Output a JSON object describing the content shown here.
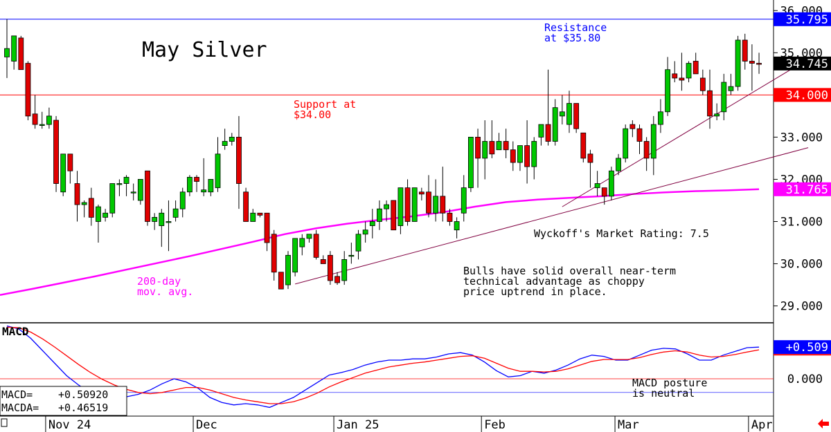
{
  "chart_data": [
    {
      "type": "candlestick",
      "title": "May Silver",
      "y_axis": {
        "ylim": [
          28.6,
          36.25
        ],
        "ticks": [
          "36.000",
          "35.000",
          "34.000",
          "33.000",
          "32.000",
          "31.000",
          "30.000",
          "29.000"
        ],
        "tick_values": [
          36,
          35,
          34,
          33,
          32,
          31,
          30,
          29
        ]
      },
      "x_axis": {
        "labels": [
          "Nov 24",
          "Dec",
          "Jan 25",
          "Feb",
          "Mar",
          "Apr"
        ],
        "label_bar": [
          6,
          27,
          47,
          68,
          87,
          106
        ]
      },
      "candles": [
        {
          "o": 34.9,
          "h": 35.8,
          "l": 34.4,
          "c": 35.1
        },
        {
          "o": 34.8,
          "h": 35.4,
          "l": 34.6,
          "c": 35.4
        },
        {
          "o": 35.35,
          "h": 35.4,
          "l": 34.6,
          "c": 34.6
        },
        {
          "o": 34.75,
          "h": 34.8,
          "l": 33.4,
          "c": 33.5
        },
        {
          "o": 33.55,
          "h": 34.0,
          "l": 33.2,
          "c": 33.3
        },
        {
          "o": 33.3,
          "h": 33.6,
          "l": 33.2,
          "c": 33.3
        },
        {
          "o": 33.3,
          "h": 33.7,
          "l": 33.2,
          "c": 33.5
        },
        {
          "o": 33.4,
          "h": 33.5,
          "l": 31.7,
          "c": 31.9
        },
        {
          "o": 31.7,
          "h": 32.6,
          "l": 31.6,
          "c": 32.6
        },
        {
          "o": 32.6,
          "h": 32.6,
          "l": 31.9,
          "c": 32.2
        },
        {
          "o": 31.9,
          "h": 32.2,
          "l": 31.0,
          "c": 31.4
        },
        {
          "o": 31.4,
          "h": 31.5,
          "l": 31.1,
          "c": 31.45
        },
        {
          "o": 31.55,
          "h": 31.8,
          "l": 30.9,
          "c": 31.1
        },
        {
          "o": 31.0,
          "h": 31.4,
          "l": 30.5,
          "c": 31.35
        },
        {
          "o": 31.1,
          "h": 31.3,
          "l": 31.0,
          "c": 31.2
        },
        {
          "o": 31.2,
          "h": 31.9,
          "l": 31.1,
          "c": 31.9
        },
        {
          "o": 31.9,
          "h": 32.0,
          "l": 31.6,
          "c": 31.9
        },
        {
          "o": 31.9,
          "h": 32.1,
          "l": 31.6,
          "c": 32.05
        },
        {
          "o": 31.7,
          "h": 31.9,
          "l": 31.5,
          "c": 31.7
        },
        {
          "o": 31.5,
          "h": 32.0,
          "l": 31.4,
          "c": 32.0
        },
        {
          "o": 32.2,
          "h": 32.2,
          "l": 30.9,
          "c": 31.0
        },
        {
          "o": 31.0,
          "h": 31.2,
          "l": 30.8,
          "c": 31.1
        },
        {
          "o": 30.9,
          "h": 31.3,
          "l": 30.4,
          "c": 31.2
        },
        {
          "o": 31.0,
          "h": 31.5,
          "l": 30.3,
          "c": 31.0
        },
        {
          "o": 31.1,
          "h": 31.5,
          "l": 31.0,
          "c": 31.3
        },
        {
          "o": 31.3,
          "h": 31.8,
          "l": 31.1,
          "c": 31.7
        },
        {
          "o": 31.7,
          "h": 32.1,
          "l": 31.6,
          "c": 32.05
        },
        {
          "o": 32.05,
          "h": 32.1,
          "l": 31.7,
          "c": 31.95
        },
        {
          "o": 31.7,
          "h": 32.5,
          "l": 31.6,
          "c": 31.75
        },
        {
          "o": 31.7,
          "h": 32.0,
          "l": 31.6,
          "c": 32.0
        },
        {
          "o": 31.8,
          "h": 33.0,
          "l": 31.7,
          "c": 32.6
        },
        {
          "o": 32.8,
          "h": 33.2,
          "l": 32.7,
          "c": 32.9
        },
        {
          "o": 32.9,
          "h": 33.1,
          "l": 32.8,
          "c": 33.0
        },
        {
          "o": 33.0,
          "h": 33.5,
          "l": 31.3,
          "c": 31.9
        },
        {
          "o": 31.7,
          "h": 31.8,
          "l": 31.0,
          "c": 31.0
        },
        {
          "o": 31.0,
          "h": 31.3,
          "l": 31.0,
          "c": 31.2
        },
        {
          "o": 31.2,
          "h": 31.2,
          "l": 31.1,
          "c": 31.15
        },
        {
          "o": 31.2,
          "h": 31.2,
          "l": 30.3,
          "c": 30.5
        },
        {
          "o": 30.7,
          "h": 30.8,
          "l": 29.6,
          "c": 29.8
        },
        {
          "o": 29.8,
          "h": 29.8,
          "l": 29.4,
          "c": 29.4
        },
        {
          "o": 29.5,
          "h": 30.3,
          "l": 29.4,
          "c": 30.2
        },
        {
          "o": 29.8,
          "h": 30.6,
          "l": 29.7,
          "c": 30.6
        },
        {
          "o": 30.4,
          "h": 30.7,
          "l": 30.2,
          "c": 30.6
        },
        {
          "o": 30.6,
          "h": 30.7,
          "l": 30.5,
          "c": 30.7
        },
        {
          "o": 30.7,
          "h": 30.8,
          "l": 30.1,
          "c": 30.15
        },
        {
          "o": 30.1,
          "h": 30.2,
          "l": 30.0,
          "c": 30.0
        },
        {
          "o": 30.2,
          "h": 30.3,
          "l": 29.5,
          "c": 29.6
        },
        {
          "o": 29.7,
          "h": 29.8,
          "l": 29.5,
          "c": 29.55
        },
        {
          "o": 29.6,
          "h": 30.3,
          "l": 29.5,
          "c": 30.1
        },
        {
          "o": 30.2,
          "h": 30.5,
          "l": 30.0,
          "c": 30.2
        },
        {
          "o": 30.3,
          "h": 30.8,
          "l": 30.1,
          "c": 30.7
        },
        {
          "o": 30.7,
          "h": 31.0,
          "l": 30.5,
          "c": 30.8
        },
        {
          "o": 30.9,
          "h": 31.3,
          "l": 30.6,
          "c": 31.0
        },
        {
          "o": 31.0,
          "h": 31.5,
          "l": 30.8,
          "c": 31.3
        },
        {
          "o": 31.3,
          "h": 31.5,
          "l": 31.0,
          "c": 31.4
        },
        {
          "o": 31.5,
          "h": 31.5,
          "l": 30.8,
          "c": 30.8
        },
        {
          "o": 30.9,
          "h": 31.8,
          "l": 30.7,
          "c": 31.8
        },
        {
          "o": 31.8,
          "h": 32.0,
          "l": 30.9,
          "c": 31.0
        },
        {
          "o": 31.0,
          "h": 31.8,
          "l": 31.0,
          "c": 31.8
        },
        {
          "o": 31.7,
          "h": 31.8,
          "l": 31.5,
          "c": 31.65
        },
        {
          "o": 31.7,
          "h": 32.1,
          "l": 31.1,
          "c": 31.2
        },
        {
          "o": 31.2,
          "h": 32.0,
          "l": 31.0,
          "c": 31.6
        },
        {
          "o": 31.6,
          "h": 32.3,
          "l": 31.0,
          "c": 31.2
        },
        {
          "o": 31.2,
          "h": 31.3,
          "l": 30.9,
          "c": 31.0
        },
        {
          "o": 30.8,
          "h": 31.1,
          "l": 30.6,
          "c": 31.0
        },
        {
          "o": 31.2,
          "h": 32.1,
          "l": 31.0,
          "c": 31.8
        },
        {
          "o": 31.8,
          "h": 33.0,
          "l": 31.7,
          "c": 33.0
        },
        {
          "o": 33.0,
          "h": 33.2,
          "l": 31.8,
          "c": 32.5
        },
        {
          "o": 32.5,
          "h": 33.4,
          "l": 32.0,
          "c": 32.9
        },
        {
          "o": 32.9,
          "h": 33.4,
          "l": 32.5,
          "c": 32.6
        },
        {
          "o": 32.7,
          "h": 33.1,
          "l": 32.7,
          "c": 32.9
        },
        {
          "o": 32.9,
          "h": 33.2,
          "l": 32.5,
          "c": 32.7
        },
        {
          "o": 32.7,
          "h": 32.9,
          "l": 32.2,
          "c": 32.4
        },
        {
          "o": 32.4,
          "h": 32.8,
          "l": 32.2,
          "c": 32.8
        },
        {
          "o": 32.8,
          "h": 33.4,
          "l": 31.9,
          "c": 32.3
        },
        {
          "o": 32.3,
          "h": 33.0,
          "l": 32.0,
          "c": 32.9
        },
        {
          "o": 33.0,
          "h": 33.3,
          "l": 32.8,
          "c": 33.3
        },
        {
          "o": 33.3,
          "h": 34.6,
          "l": 32.8,
          "c": 32.9
        },
        {
          "o": 32.9,
          "h": 33.9,
          "l": 32.8,
          "c": 33.7
        },
        {
          "o": 33.5,
          "h": 34.0,
          "l": 33.3,
          "c": 33.6
        },
        {
          "o": 33.3,
          "h": 34.1,
          "l": 33.1,
          "c": 33.8
        },
        {
          "o": 33.8,
          "h": 33.8,
          "l": 33.1,
          "c": 33.2
        },
        {
          "o": 33.1,
          "h": 33.1,
          "l": 32.4,
          "c": 32.5
        },
        {
          "o": 32.6,
          "h": 32.7,
          "l": 31.8,
          "c": 32.4
        },
        {
          "o": 31.8,
          "h": 32.2,
          "l": 31.6,
          "c": 31.9
        },
        {
          "o": 31.8,
          "h": 31.8,
          "l": 31.4,
          "c": 31.6
        },
        {
          "o": 31.6,
          "h": 32.3,
          "l": 31.5,
          "c": 32.2
        },
        {
          "o": 32.2,
          "h": 32.6,
          "l": 32.1,
          "c": 32.5
        },
        {
          "o": 32.5,
          "h": 33.3,
          "l": 32.4,
          "c": 33.2
        },
        {
          "o": 33.3,
          "h": 33.4,
          "l": 33.0,
          "c": 33.2
        },
        {
          "o": 33.2,
          "h": 33.3,
          "l": 32.6,
          "c": 32.9
        },
        {
          "o": 32.9,
          "h": 33.0,
          "l": 32.2,
          "c": 32.5
        },
        {
          "o": 32.5,
          "h": 33.5,
          "l": 32.1,
          "c": 33.3
        },
        {
          "o": 33.3,
          "h": 33.9,
          "l": 33.1,
          "c": 33.6
        },
        {
          "o": 33.6,
          "h": 34.9,
          "l": 33.5,
          "c": 34.6
        },
        {
          "o": 34.5,
          "h": 34.8,
          "l": 34.3,
          "c": 34.4
        },
        {
          "o": 34.4,
          "h": 35.0,
          "l": 34.1,
          "c": 34.35
        },
        {
          "o": 34.4,
          "h": 34.8,
          "l": 34.3,
          "c": 34.75
        },
        {
          "o": 34.8,
          "h": 35.0,
          "l": 34.5,
          "c": 34.5
        },
        {
          "o": 34.4,
          "h": 34.6,
          "l": 34.0,
          "c": 34.1
        },
        {
          "o": 34.1,
          "h": 34.6,
          "l": 33.2,
          "c": 33.5
        },
        {
          "o": 33.5,
          "h": 33.8,
          "l": 33.4,
          "c": 33.55
        },
        {
          "o": 33.6,
          "h": 34.5,
          "l": 33.4,
          "c": 34.3
        },
        {
          "o": 34.1,
          "h": 34.5,
          "l": 34.0,
          "c": 34.2
        },
        {
          "o": 34.2,
          "h": 35.4,
          "l": 34.1,
          "c": 35.3
        },
        {
          "o": 35.3,
          "h": 35.45,
          "l": 34.6,
          "c": 34.8
        },
        {
          "o": 34.8,
          "h": 35.2,
          "l": 34.1,
          "c": 34.75
        },
        {
          "o": 34.75,
          "h": 35.0,
          "l": 34.5,
          "c": 34.745
        }
      ],
      "moving_average": {
        "label": "200-day\nmov. avg.",
        "color": "#ff00ff",
        "values": [
          29.26,
          29.4,
          29.55,
          29.7,
          29.86,
          30.02,
          30.18,
          30.35,
          30.52,
          30.7,
          30.84,
          30.95,
          31.04,
          31.12,
          31.22,
          31.35,
          31.46,
          31.52,
          31.56,
          31.6,
          31.65,
          31.69,
          31.72,
          31.74,
          31.765
        ]
      },
      "horizontal_lines": [
        {
          "name": "resistance",
          "value": 35.795,
          "color": "#0000ff"
        },
        {
          "name": "support",
          "value": 34.0,
          "color": "#ff0000"
        }
      ],
      "trendlines": [
        {
          "from": [
            41,
            29.52
          ],
          "to": [
            114,
            32.75
          ]
        },
        {
          "from": [
            79,
            31.35
          ],
          "to": [
            114,
            34.85
          ]
        }
      ],
      "price_labels": [
        {
          "text": "35.795",
          "value": 35.795,
          "bg": "#0000ff",
          "fg": "#ffffff"
        },
        {
          "text": "34.745",
          "value": 34.745,
          "bg": "#000000",
          "fg": "#ffffff"
        },
        {
          "text": "34.000",
          "value": 34.0,
          "bg": "#ff0000",
          "fg": "#ffffff"
        },
        {
          "text": "31.765",
          "value": 31.765,
          "bg": "#ff00ff",
          "fg": "#ffffff"
        }
      ],
      "annotations": {
        "resistance": "Resistance\nat $35.80",
        "support": "Support at\n$34.00",
        "rating": "Wyckoff's Market Rating: 7.5",
        "comment": "Bulls have solid overall near-term\ntechnical advantage as choppy\nprice uptrend in place."
      }
    },
    {
      "type": "line",
      "title": "MACD",
      "ylim": [
        -0.6,
        0.9
      ],
      "y_ticks": [
        "0.000"
      ],
      "y_tick_values": [
        0
      ],
      "series": [
        {
          "name": "MACD",
          "color": "#0000ff",
          "values": [
            0.85,
            0.8,
            0.65,
            0.45,
            0.25,
            0.05,
            -0.1,
            -0.22,
            -0.28,
            -0.3,
            -0.29,
            -0.25,
            -0.18,
            -0.08,
            0.0,
            -0.05,
            -0.15,
            -0.3,
            -0.38,
            -0.42,
            -0.4,
            -0.42,
            -0.46,
            -0.38,
            -0.3,
            -0.18,
            -0.06,
            0.06,
            0.1,
            0.15,
            0.22,
            0.27,
            0.3,
            0.3,
            0.32,
            0.32,
            0.35,
            0.4,
            0.42,
            0.38,
            0.27,
            0.13,
            0.03,
            0.05,
            0.12,
            0.09,
            0.14,
            0.22,
            0.32,
            0.38,
            0.36,
            0.3,
            0.3,
            0.38,
            0.46,
            0.49,
            0.48,
            0.4,
            0.3,
            0.3,
            0.38,
            0.44,
            0.5,
            0.509
          ]
        },
        {
          "name": "MACDA",
          "color": "#ff0000",
          "values": [
            0.83,
            0.82,
            0.75,
            0.64,
            0.51,
            0.37,
            0.23,
            0.1,
            -0.01,
            -0.1,
            -0.17,
            -0.22,
            -0.24,
            -0.22,
            -0.18,
            -0.14,
            -0.14,
            -0.18,
            -0.24,
            -0.3,
            -0.34,
            -0.37,
            -0.4,
            -0.4,
            -0.37,
            -0.31,
            -0.23,
            -0.13,
            -0.05,
            0.02,
            0.09,
            0.14,
            0.19,
            0.22,
            0.25,
            0.27,
            0.3,
            0.33,
            0.36,
            0.37,
            0.33,
            0.25,
            0.17,
            0.12,
            0.12,
            0.11,
            0.12,
            0.16,
            0.22,
            0.28,
            0.31,
            0.31,
            0.31,
            0.34,
            0.39,
            0.43,
            0.45,
            0.43,
            0.38,
            0.35,
            0.36,
            0.39,
            0.43,
            0.465
          ]
        }
      ],
      "reference_lines": [
        {
          "value": 0.0,
          "color": "#ff0000"
        },
        {
          "value": -0.22,
          "color": "#0000ff"
        }
      ],
      "price_label": {
        "text": "+0.509",
        "value": 0.509,
        "bg": "#0000ff",
        "fg": "#ffffff"
      },
      "readout": {
        "macd_label": "MACD=",
        "macd_value": "+0.50920",
        "macda_label": "MACDA=",
        "macda_value": "+0.46519"
      },
      "annotation": "MACD posture\nis neutral"
    }
  ]
}
